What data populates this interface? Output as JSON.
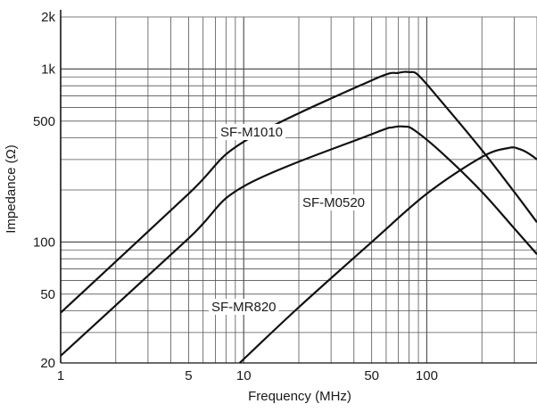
{
  "chart_data": {
    "type": "line",
    "title": "",
    "xlabel": "Frequency (MHz)",
    "ylabel": "Impedance (Ω)",
    "x_scale": "log",
    "y_scale": "log",
    "xlim": [
      1,
      400
    ],
    "ylim": [
      20,
      2000
    ],
    "grid": true,
    "x_ticks": [
      {
        "value": 1,
        "label": "1"
      },
      {
        "value": 5,
        "label": "5"
      },
      {
        "value": 10,
        "label": "10"
      },
      {
        "value": 50,
        "label": "50"
      },
      {
        "value": 100,
        "label": "100"
      }
    ],
    "y_ticks": [
      {
        "value": 20,
        "label": "20"
      },
      {
        "value": 50,
        "label": "50"
      },
      {
        "value": 100,
        "label": "100"
      },
      {
        "value": 500,
        "label": "500"
      },
      {
        "value": 1000,
        "label": "1k"
      },
      {
        "value": 2000,
        "label": "2k"
      }
    ],
    "series": [
      {
        "name": "SF-M1010",
        "x": [
          1,
          5,
          10,
          50,
          70,
          80,
          90,
          120,
          200,
          300,
          400
        ],
        "y": [
          39,
          190,
          380,
          860,
          950,
          960,
          920,
          650,
          340,
          195,
          130
        ]
      },
      {
        "name": "SF-M0520",
        "x": [
          1,
          5,
          10,
          50,
          65,
          75,
          85,
          120,
          200,
          300,
          400
        ],
        "y": [
          22,
          105,
          210,
          420,
          460,
          465,
          445,
          330,
          195,
          120,
          85
        ]
      },
      {
        "name": "SF-MR820",
        "x": [
          9.5,
          20,
          50,
          100,
          200,
          280,
          320,
          360,
          400
        ],
        "y": [
          20,
          42,
          100,
          190,
          310,
          350,
          345,
          325,
          300
        ]
      }
    ]
  }
}
